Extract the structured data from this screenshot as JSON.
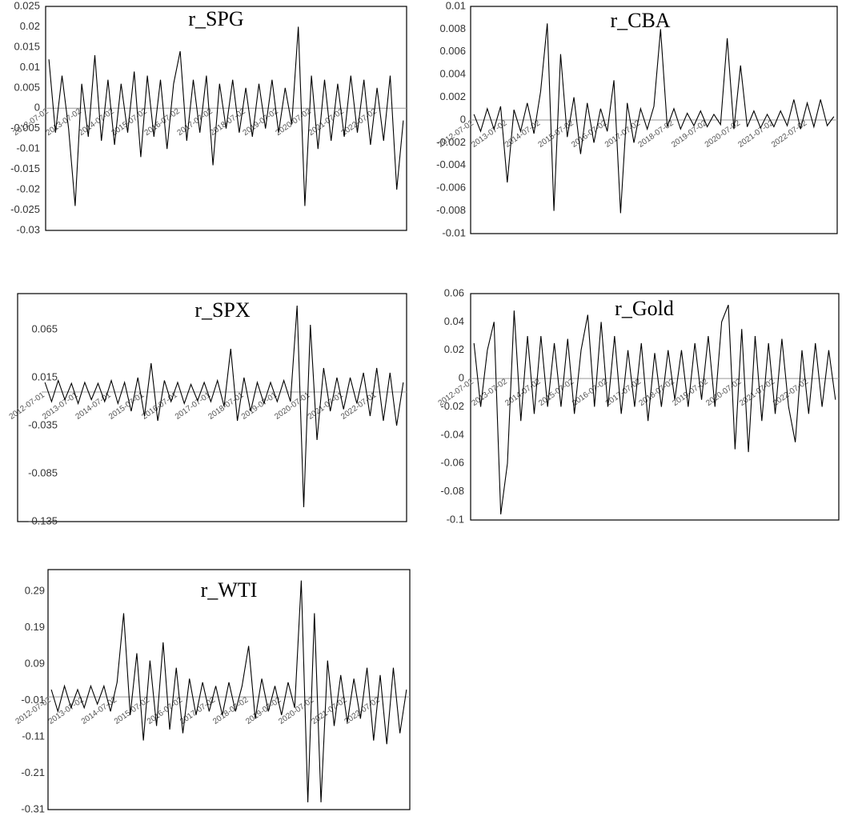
{
  "chart_data": [
    {
      "type": "line",
      "title": "r_SPG",
      "color": "#000000",
      "categories": [
        "2012-07-02",
        null,
        null,
        null,
        null,
        "2013-07-02",
        null,
        null,
        null,
        null,
        "2014-07-02",
        null,
        null,
        null,
        null,
        "2015-07-02",
        null,
        null,
        null,
        null,
        "2016-07-02",
        null,
        null,
        null,
        null,
        "2017-07-02",
        null,
        null,
        null,
        null,
        "2018-07-02",
        null,
        null,
        null,
        null,
        "2019-07-02",
        null,
        null,
        null,
        null,
        "2020-07-02",
        null,
        null,
        null,
        null,
        "2021-07-02",
        null,
        null,
        null,
        null,
        "2022-07-02",
        null,
        null,
        null,
        null
      ],
      "values": [
        0.012,
        -0.006,
        0.008,
        -0.005,
        -0.024,
        0.006,
        -0.007,
        0.013,
        -0.008,
        0.007,
        -0.009,
        0.006,
        -0.006,
        0.009,
        -0.012,
        0.008,
        -0.007,
        0.007,
        -0.01,
        0.006,
        0.014,
        -0.008,
        0.007,
        -0.006,
        0.008,
        -0.014,
        0.006,
        -0.005,
        0.007,
        -0.006,
        0.005,
        -0.007,
        0.006,
        -0.005,
        0.007,
        -0.006,
        0.005,
        -0.004,
        0.02,
        -0.024,
        0.008,
        -0.01,
        0.007,
        -0.008,
        0.006,
        -0.007,
        0.008,
        -0.006,
        0.007,
        -0.009,
        0.005,
        -0.008,
        0.008,
        -0.02,
        -0.003
      ],
      "ylim": [
        -0.03,
        0.025
      ],
      "yticks": [
        0.025,
        0.02,
        0.015,
        0.01,
        0.005,
        0,
        -0.005,
        -0.01,
        -0.015,
        -0.02,
        -0.025,
        -0.03
      ]
    },
    {
      "type": "line",
      "title": "r_CBA",
      "color": "#000000",
      "categories": [
        "2012-07-02",
        null,
        null,
        null,
        null,
        "2013-07-02",
        null,
        null,
        null,
        null,
        "2014-07-02",
        null,
        null,
        null,
        null,
        "2015-07-02",
        null,
        null,
        null,
        null,
        "2016-07-02",
        null,
        null,
        null,
        null,
        "2017-07-02",
        null,
        null,
        null,
        null,
        "2018-07-02",
        null,
        null,
        null,
        null,
        "2019-07-02",
        null,
        null,
        null,
        null,
        "2020-07-02",
        null,
        null,
        null,
        null,
        "2021-07-02",
        null,
        null,
        null,
        null,
        "2022-07-02",
        null,
        null,
        null,
        null
      ],
      "values": [
        0.0005,
        -0.001,
        0.001,
        -0.0008,
        0.0012,
        -0.0055,
        0.0009,
        -0.001,
        0.0015,
        -0.0012,
        0.0025,
        0.0085,
        -0.008,
        0.0058,
        -0.0015,
        0.002,
        -0.003,
        0.0015,
        -0.002,
        0.001,
        -0.001,
        0.0035,
        -0.0082,
        0.0015,
        -0.002,
        0.001,
        -0.0008,
        0.0012,
        0.008,
        -0.0006,
        0.001,
        -0.0008,
        0.0006,
        -0.0005,
        0.0008,
        -0.0006,
        0.0005,
        -0.0004,
        0.0072,
        -0.0008,
        0.0048,
        -0.0006,
        0.0008,
        -0.0007,
        0.0005,
        -0.0006,
        0.0008,
        -0.0005,
        0.0018,
        -0.0008,
        0.0015,
        -0.0006,
        0.0018,
        -0.0005,
        0.0003
      ],
      "ylim": [
        -0.01,
        0.01
      ],
      "yticks": [
        0.01,
        0.008,
        0.006,
        0.004,
        0.002,
        0,
        -0.002,
        -0.004,
        -0.006,
        -0.008,
        -0.01
      ]
    },
    {
      "type": "line",
      "title": "r_SPX",
      "color": "#000000",
      "categories": [
        "2012-07-01",
        null,
        null,
        null,
        null,
        "2013-07-01",
        null,
        null,
        null,
        null,
        "2014-07-01",
        null,
        null,
        null,
        null,
        "2015-07-01",
        null,
        null,
        null,
        null,
        "2016-07-01",
        null,
        null,
        null,
        null,
        "2017-07-01",
        null,
        null,
        null,
        null,
        "2018-07-01",
        null,
        null,
        null,
        null,
        "2019-07-01",
        null,
        null,
        null,
        null,
        "2020-07-01",
        null,
        null,
        null,
        null,
        "2021-07-01",
        null,
        null,
        null,
        null,
        "2022-07-01",
        null,
        null,
        null,
        null
      ],
      "values": [
        0.01,
        -0.01,
        0.012,
        -0.008,
        0.009,
        -0.012,
        0.01,
        -0.008,
        0.009,
        -0.01,
        0.012,
        -0.012,
        0.01,
        -0.02,
        0.015,
        -0.025,
        0.03,
        -0.03,
        0.012,
        -0.01,
        0.01,
        -0.012,
        0.008,
        -0.009,
        0.01,
        -0.01,
        0.012,
        -0.015,
        0.045,
        -0.03,
        0.015,
        -0.02,
        0.01,
        -0.012,
        0.01,
        -0.01,
        0.012,
        -0.01,
        0.09,
        -0.12,
        0.07,
        -0.05,
        0.025,
        -0.02,
        0.015,
        -0.018,
        0.015,
        -0.012,
        0.02,
        -0.025,
        0.025,
        -0.03,
        0.02,
        -0.035,
        0.01
      ],
      "ylim": [
        -0.135,
        0.1
      ],
      "yticks": [
        0.065,
        0.015,
        -0.035,
        -0.085,
        -0.135
      ]
    },
    {
      "type": "line",
      "title": "r_Gold",
      "color": "#000000",
      "categories": [
        "2012-07-02",
        null,
        null,
        null,
        null,
        "2013-07-02",
        null,
        null,
        null,
        null,
        "2014-07-02",
        null,
        null,
        null,
        null,
        "2015-07-02",
        null,
        null,
        null,
        null,
        "2016-07-02",
        null,
        null,
        null,
        null,
        "2017-07-02",
        null,
        null,
        null,
        null,
        "2018-07-02",
        null,
        null,
        null,
        null,
        "2019-07-02",
        null,
        null,
        null,
        null,
        "2020-07-02",
        null,
        null,
        null,
        null,
        "2021-07-02",
        null,
        null,
        null,
        null,
        "2022-07-02",
        null,
        null,
        null,
        null
      ],
      "values": [
        0.025,
        -0.02,
        0.02,
        0.04,
        -0.096,
        -0.06,
        0.048,
        -0.03,
        0.03,
        -0.025,
        0.03,
        -0.02,
        0.025,
        -0.02,
        0.028,
        -0.025,
        0.02,
        0.045,
        -0.02,
        0.04,
        -0.02,
        0.03,
        -0.025,
        0.02,
        -0.02,
        0.025,
        -0.03,
        0.018,
        -0.02,
        0.02,
        -0.015,
        0.02,
        -0.02,
        0.025,
        -0.015,
        0.03,
        -0.02,
        0.04,
        0.052,
        -0.05,
        0.035,
        -0.052,
        0.03,
        -0.03,
        0.025,
        -0.025,
        0.028,
        -0.02,
        -0.045,
        0.02,
        -0.025,
        0.025,
        -0.02,
        0.02,
        -0.015
      ],
      "ylim": [
        -0.1,
        0.06
      ],
      "yticks": [
        0.06,
        0.04,
        0.02,
        0,
        -0.02,
        -0.04,
        -0.06,
        -0.08,
        -0.1
      ]
    },
    {
      "type": "line",
      "title": "r_WTI",
      "color": "#000000",
      "categories": [
        "2012-07-02",
        null,
        null,
        null,
        null,
        "2013-07-02",
        null,
        null,
        null,
        null,
        "2014-07-02",
        null,
        null,
        null,
        null,
        "2015-07-02",
        null,
        null,
        null,
        null,
        "2016-07-02",
        null,
        null,
        null,
        null,
        "2017-07-02",
        null,
        null,
        null,
        null,
        "2018-07-02",
        null,
        null,
        null,
        null,
        "2019-07-02",
        null,
        null,
        null,
        null,
        "2020-07-02",
        null,
        null,
        null,
        null,
        "2021-07-02",
        null,
        null,
        null,
        null,
        "2022-07-02",
        null,
        null,
        null,
        null
      ],
      "values": [
        0.02,
        -0.04,
        0.03,
        -0.03,
        0.02,
        -0.03,
        0.03,
        -0.02,
        0.03,
        -0.04,
        0.04,
        0.23,
        -0.05,
        0.12,
        -0.12,
        0.1,
        -0.08,
        0.15,
        -0.09,
        0.08,
        -0.1,
        0.05,
        -0.05,
        0.04,
        -0.04,
        0.03,
        -0.05,
        0.04,
        -0.04,
        0.03,
        0.14,
        -0.06,
        0.05,
        -0.04,
        0.03,
        -0.05,
        0.04,
        -0.03,
        0.32,
        -0.29,
        0.23,
        -0.29,
        0.1,
        -0.08,
        0.06,
        -0.07,
        0.05,
        -0.06,
        0.08,
        -0.12,
        0.06,
        -0.13,
        0.08,
        -0.1,
        0.02
      ],
      "ylim": [
        -0.31,
        0.35
      ],
      "yticks": [
        0.29,
        0.19,
        0.09,
        -0.01,
        -0.11,
        -0.21,
        -0.31
      ]
    }
  ]
}
